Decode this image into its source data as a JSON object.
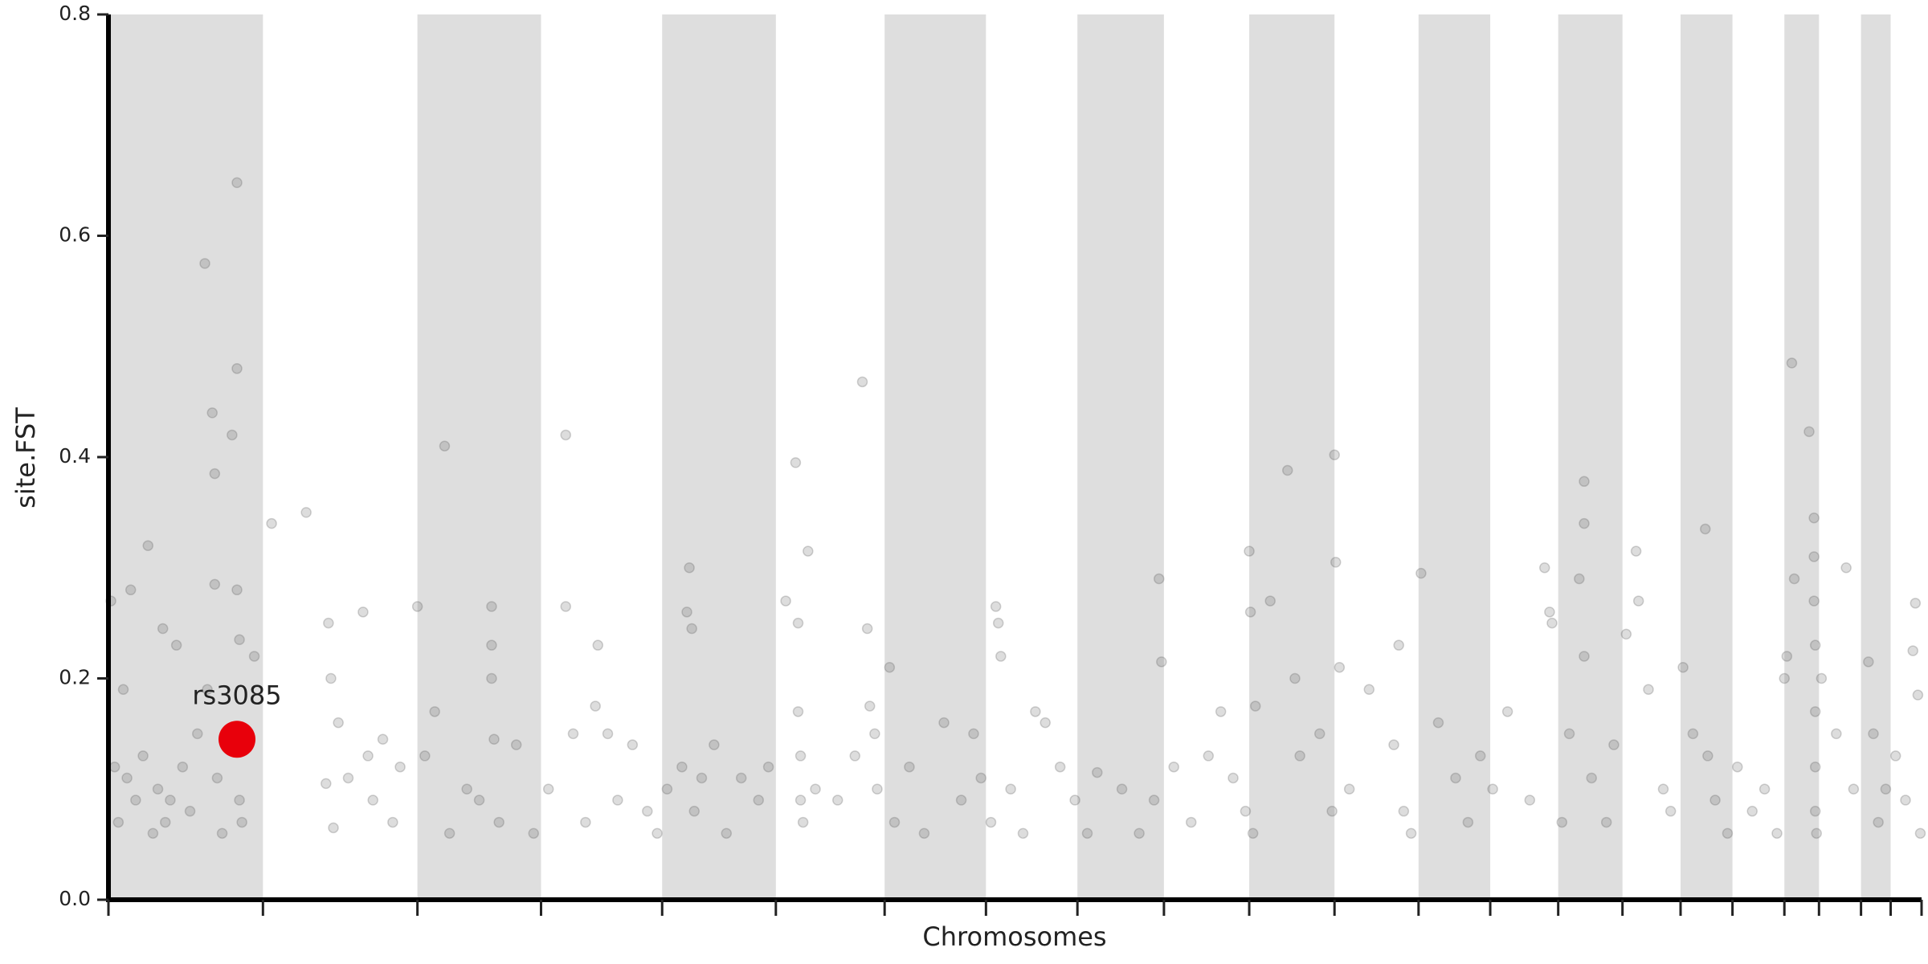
{
  "chart_data": {
    "type": "manhattan",
    "xlabel": "Chromosomes",
    "ylabel": "site.FST",
    "xlim": [
      0,
      1467
    ],
    "ylim": [
      0,
      0.8
    ],
    "xticks": [
      0,
      125,
      250,
      350,
      448,
      540,
      628,
      710,
      784,
      854,
      923,
      992,
      1060,
      1118,
      1173,
      1225,
      1272,
      1314,
      1356,
      1384,
      1418,
      1442,
      1467
    ],
    "yticks": [
      {
        "value": 0,
        "label": "0.0"
      },
      0.2,
      0.4,
      0.6,
      0.8
    ],
    "alternating_bands": true,
    "band_color": "#dedede",
    "color": "#555555",
    "x": [
      2,
      5,
      8,
      12,
      15,
      18,
      22,
      28,
      32,
      36,
      40,
      44,
      46,
      50,
      55,
      60,
      66,
      72,
      78,
      80,
      84,
      86,
      86,
      88,
      92,
      100,
      104,
      104,
      104,
      106,
      106,
      108,
      110,
      118,
      132,
      160,
      176,
      178,
      180,
      182,
      186,
      194,
      206,
      210,
      214,
      222,
      230,
      236,
      250,
      256,
      264,
      272,
      276,
      290,
      300,
      310,
      310,
      310,
      312,
      316,
      330,
      344,
      356,
      370,
      370,
      376,
      386,
      394,
      396,
      404,
      412,
      424,
      436,
      444,
      452,
      464,
      468,
      470,
      472,
      474,
      480,
      490,
      500,
      512,
      526,
      534,
      548,
      556,
      558,
      558,
      560,
      560,
      562,
      566,
      572,
      590,
      604,
      610,
      614,
      616,
      620,
      622,
      632,
      636,
      648,
      660,
      676,
      690,
      700,
      706,
      714,
      718,
      720,
      722,
      730,
      740,
      750,
      758,
      770,
      782,
      792,
      800,
      820,
      834,
      846,
      850,
      852,
      862,
      876,
      890,
      900,
      910,
      920,
      923,
      924,
      926,
      928,
      940,
      954,
      960,
      964,
      980,
      990,
      992,
      993,
      996,
      1004,
      1020,
      1040,
      1044,
      1048,
      1054,
      1062,
      1076,
      1090,
      1100,
      1110,
      1120,
      1132,
      1150,
      1162,
      1166,
      1168,
      1176,
      1182,
      1190,
      1194,
      1194,
      1194,
      1200,
      1212,
      1218,
      1228,
      1236,
      1238,
      1246,
      1258,
      1264,
      1274,
      1282,
      1292,
      1294,
      1300,
      1310,
      1318,
      1330,
      1340,
      1350,
      1356,
      1358,
      1362,
      1364,
      1376,
      1380,
      1380,
      1380,
      1381,
      1381,
      1381,
      1381,
      1382,
      1386,
      1398,
      1406,
      1412,
      1424,
      1428,
      1432,
      1438,
      1446,
      1454,
      1460,
      1462,
      1464,
      1466
    ],
    "values": [
      0.27,
      0.12,
      0.07,
      0.19,
      0.11,
      0.28,
      0.09,
      0.13,
      0.32,
      0.06,
      0.1,
      0.245,
      0.07,
      0.09,
      0.23,
      0.12,
      0.08,
      0.15,
      0.575,
      0.19,
      0.44,
      0.385,
      0.285,
      0.11,
      0.06,
      0.42,
      0.648,
      0.48,
      0.28,
      0.235,
      0.09,
      0.07,
      0.15,
      0.22,
      0.34,
      0.35,
      0.105,
      0.25,
      0.2,
      0.065,
      0.16,
      0.11,
      0.26,
      0.13,
      0.09,
      0.145,
      0.07,
      0.12,
      0.265,
      0.13,
      0.17,
      0.41,
      0.06,
      0.1,
      0.09,
      0.265,
      0.23,
      0.2,
      0.145,
      0.07,
      0.14,
      0.06,
      0.1,
      0.42,
      0.265,
      0.15,
      0.07,
      0.175,
      0.23,
      0.15,
      0.09,
      0.14,
      0.08,
      0.06,
      0.1,
      0.12,
      0.26,
      0.3,
      0.245,
      0.08,
      0.11,
      0.14,
      0.06,
      0.11,
      0.09,
      0.12,
      0.27,
      0.395,
      0.25,
      0.17,
      0.13,
      0.09,
      0.07,
      0.315,
      0.1,
      0.09,
      0.13,
      0.468,
      0.245,
      0.175,
      0.15,
      0.1,
      0.21,
      0.07,
      0.12,
      0.06,
      0.16,
      0.09,
      0.15,
      0.11,
      0.07,
      0.265,
      0.25,
      0.22,
      0.1,
      0.06,
      0.17,
      0.16,
      0.12,
      0.09,
      0.06,
      0.115,
      0.1,
      0.06,
      0.09,
      0.29,
      0.215,
      0.12,
      0.07,
      0.13,
      0.17,
      0.11,
      0.08,
      0.315,
      0.26,
      0.06,
      0.175,
      0.27,
      0.388,
      0.2,
      0.13,
      0.15,
      0.08,
      0.402,
      0.305,
      0.21,
      0.1,
      0.19,
      0.14,
      0.23,
      0.08,
      0.06,
      0.295,
      0.16,
      0.11,
      0.07,
      0.13,
      0.1,
      0.17,
      0.09,
      0.3,
      0.26,
      0.25,
      0.07,
      0.15,
      0.29,
      0.378,
      0.34,
      0.22,
      0.11,
      0.07,
      0.14,
      0.24,
      0.315,
      0.27,
      0.19,
      0.1,
      0.08,
      0.21,
      0.15,
      0.335,
      0.13,
      0.09,
      0.06,
      0.12,
      0.08,
      0.1,
      0.06,
      0.2,
      0.22,
      0.485,
      0.29,
      0.423,
      0.345,
      0.31,
      0.27,
      0.23,
      0.17,
      0.12,
      0.08,
      0.06,
      0.2,
      0.15,
      0.3,
      0.1,
      0.215,
      0.15,
      0.07,
      0.1,
      0.13,
      0.09,
      0.225,
      0.268,
      0.185,
      0.06
    ],
    "highlight": {
      "label": "rs3085",
      "x": 104,
      "y": 0.145,
      "color": "#e8000b"
    }
  }
}
